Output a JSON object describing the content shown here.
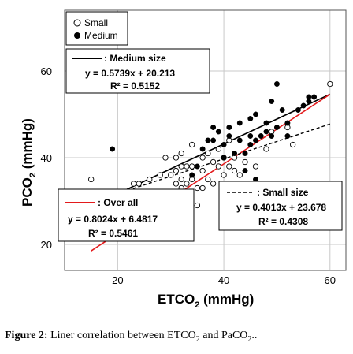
{
  "chart_data": {
    "type": "scatter",
    "xlabel_main": "ETCO",
    "xlabel_sub": "2",
    "xlabel_unit": " (mmHg)",
    "ylabel_main": "PCO",
    "ylabel_sub": "2",
    "ylabel_unit": " (mmHg)",
    "xlim": [
      10,
      63
    ],
    "ylim": [
      14,
      74
    ],
    "xticks": [
      "20",
      "40",
      "60"
    ],
    "yticks": [
      "20",
      "40",
      "60"
    ],
    "grid": true,
    "legend": {
      "placement": "top-left",
      "small_label": "Small",
      "medium_label": "Medium"
    },
    "series": [
      {
        "name": "Small",
        "marker": "open-circle",
        "points": [
          [
            15,
            35
          ],
          [
            23,
            34
          ],
          [
            24,
            34
          ],
          [
            26,
            35
          ],
          [
            28,
            36
          ],
          [
            29,
            40
          ],
          [
            30,
            36
          ],
          [
            30,
            32
          ],
          [
            31,
            40
          ],
          [
            31,
            37
          ],
          [
            31,
            34
          ],
          [
            32,
            41
          ],
          [
            32,
            38
          ],
          [
            32,
            35
          ],
          [
            32,
            33
          ],
          [
            33,
            38
          ],
          [
            33,
            34
          ],
          [
            33,
            32
          ],
          [
            34,
            43
          ],
          [
            34,
            38
          ],
          [
            34,
            35
          ],
          [
            35,
            33
          ],
          [
            35,
            29
          ],
          [
            36,
            40
          ],
          [
            36,
            37
          ],
          [
            36,
            33
          ],
          [
            37,
            41
          ],
          [
            37,
            35
          ],
          [
            38,
            39
          ],
          [
            38,
            34
          ],
          [
            39,
            42
          ],
          [
            39,
            38
          ],
          [
            40,
            40
          ],
          [
            40,
            36
          ],
          [
            41,
            44
          ],
          [
            41,
            38
          ],
          [
            42,
            37
          ],
          [
            42,
            40
          ],
          [
            43,
            36
          ],
          [
            44,
            39
          ],
          [
            46,
            38
          ],
          [
            48,
            42
          ],
          [
            49,
            46
          ],
          [
            52,
            47
          ],
          [
            53,
            43
          ],
          [
            60,
            57
          ]
        ]
      },
      {
        "name": "Medium",
        "marker": "filled-circle",
        "points": [
          [
            19,
            42
          ],
          [
            31,
            29
          ],
          [
            32,
            30
          ],
          [
            35,
            38
          ],
          [
            36,
            42
          ],
          [
            37,
            44
          ],
          [
            38,
            47
          ],
          [
            38,
            44
          ],
          [
            39,
            46
          ],
          [
            40,
            40
          ],
          [
            40,
            43
          ],
          [
            41,
            47
          ],
          [
            41,
            45
          ],
          [
            42,
            41
          ],
          [
            43,
            48
          ],
          [
            43,
            44
          ],
          [
            44,
            41
          ],
          [
            45,
            45
          ],
          [
            45,
            43
          ],
          [
            46,
            50
          ],
          [
            46,
            44
          ],
          [
            47,
            45
          ],
          [
            48,
            48
          ],
          [
            48,
            46
          ],
          [
            49,
            45
          ],
          [
            49,
            53
          ],
          [
            50,
            57
          ],
          [
            50,
            47
          ],
          [
            51,
            51
          ],
          [
            52,
            48
          ],
          [
            54,
            51
          ],
          [
            55,
            52
          ],
          [
            56,
            54
          ],
          [
            56,
            53
          ],
          [
            57,
            54
          ],
          [
            34,
            36
          ],
          [
            44,
            37
          ],
          [
            46,
            35
          ],
          [
            52,
            45
          ],
          [
            45,
            49
          ]
        ]
      }
    ],
    "fits": [
      {
        "label": ": Medium size",
        "equation": "y = 0.5739x + 20.213",
        "r2": "R² = 0.5152",
        "slope": 0.5739,
        "intercept": 20.213,
        "x_range": [
          18,
          60
        ],
        "color": "#000000",
        "style": "solid"
      },
      {
        "label": ": Over all",
        "equation": "y = 0.8024x + 6.4817",
        "r2": "R² = 0.5461",
        "slope": 0.8024,
        "intercept": 6.4817,
        "x_range": [
          15,
          60
        ],
        "color": "#e31a1c",
        "style": "solid"
      },
      {
        "label": ": Small size",
        "equation": "y = 0.4013x + 23.678",
        "r2": "R² = 0.4308",
        "slope": 0.4013,
        "intercept": 23.678,
        "x_range": [
          15,
          60
        ],
        "color": "#000000",
        "style": "dashed"
      }
    ]
  },
  "caption": {
    "figure_label": "Figure 2:",
    "text_part1": " Liner correlation between ETCO",
    "sub1": "2",
    "text_part2": " and PaCO",
    "sub2": "2",
    "text_part3": ".."
  }
}
